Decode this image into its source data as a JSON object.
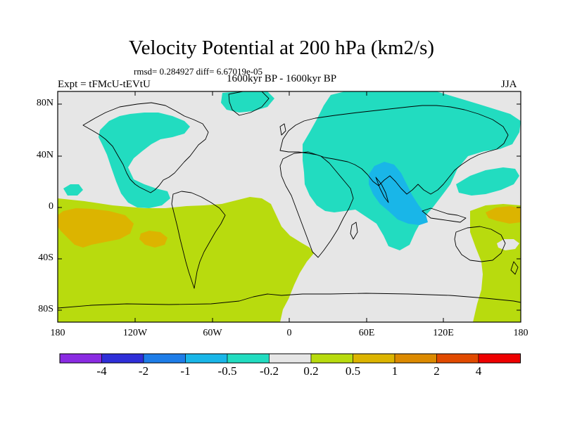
{
  "title": "Velocity Potential at 200 hPa (km2/s)",
  "stats": "rmsd= 0.284927 diff= 6.67019e-05",
  "experiment": "Expt = tFMcU-tEVtU",
  "period": "1600kyr BP - 1600kyr BP",
  "season": "JJA",
  "y_axis_labels": [
    "80N",
    "40N",
    "0",
    "40S",
    "80S"
  ],
  "x_axis_labels": [
    "180",
    "120W",
    "60W",
    "0",
    "60E",
    "120E",
    "180"
  ],
  "colorbar": {
    "colors": [
      "#8a2be2",
      "#2f2fd8",
      "#1e7de8",
      "#19b6e8",
      "#22dcc0",
      "#e6e6e6",
      "#b8db0e",
      "#dcb400",
      "#dc8a00",
      "#e14a00",
      "#ee0000"
    ],
    "labels": [
      "-4",
      "-2",
      "-1",
      "-0.5",
      "-0.2",
      "0.2",
      "0.5",
      "1",
      "2",
      "4"
    ]
  },
  "field_colors": {
    "background": "#e6e6e6",
    "negative_weak": "#22dcc0",
    "negative_mid": "#19b6e8",
    "positive_weak": "#b8db0e",
    "positive_mid": "#dcb400"
  }
}
